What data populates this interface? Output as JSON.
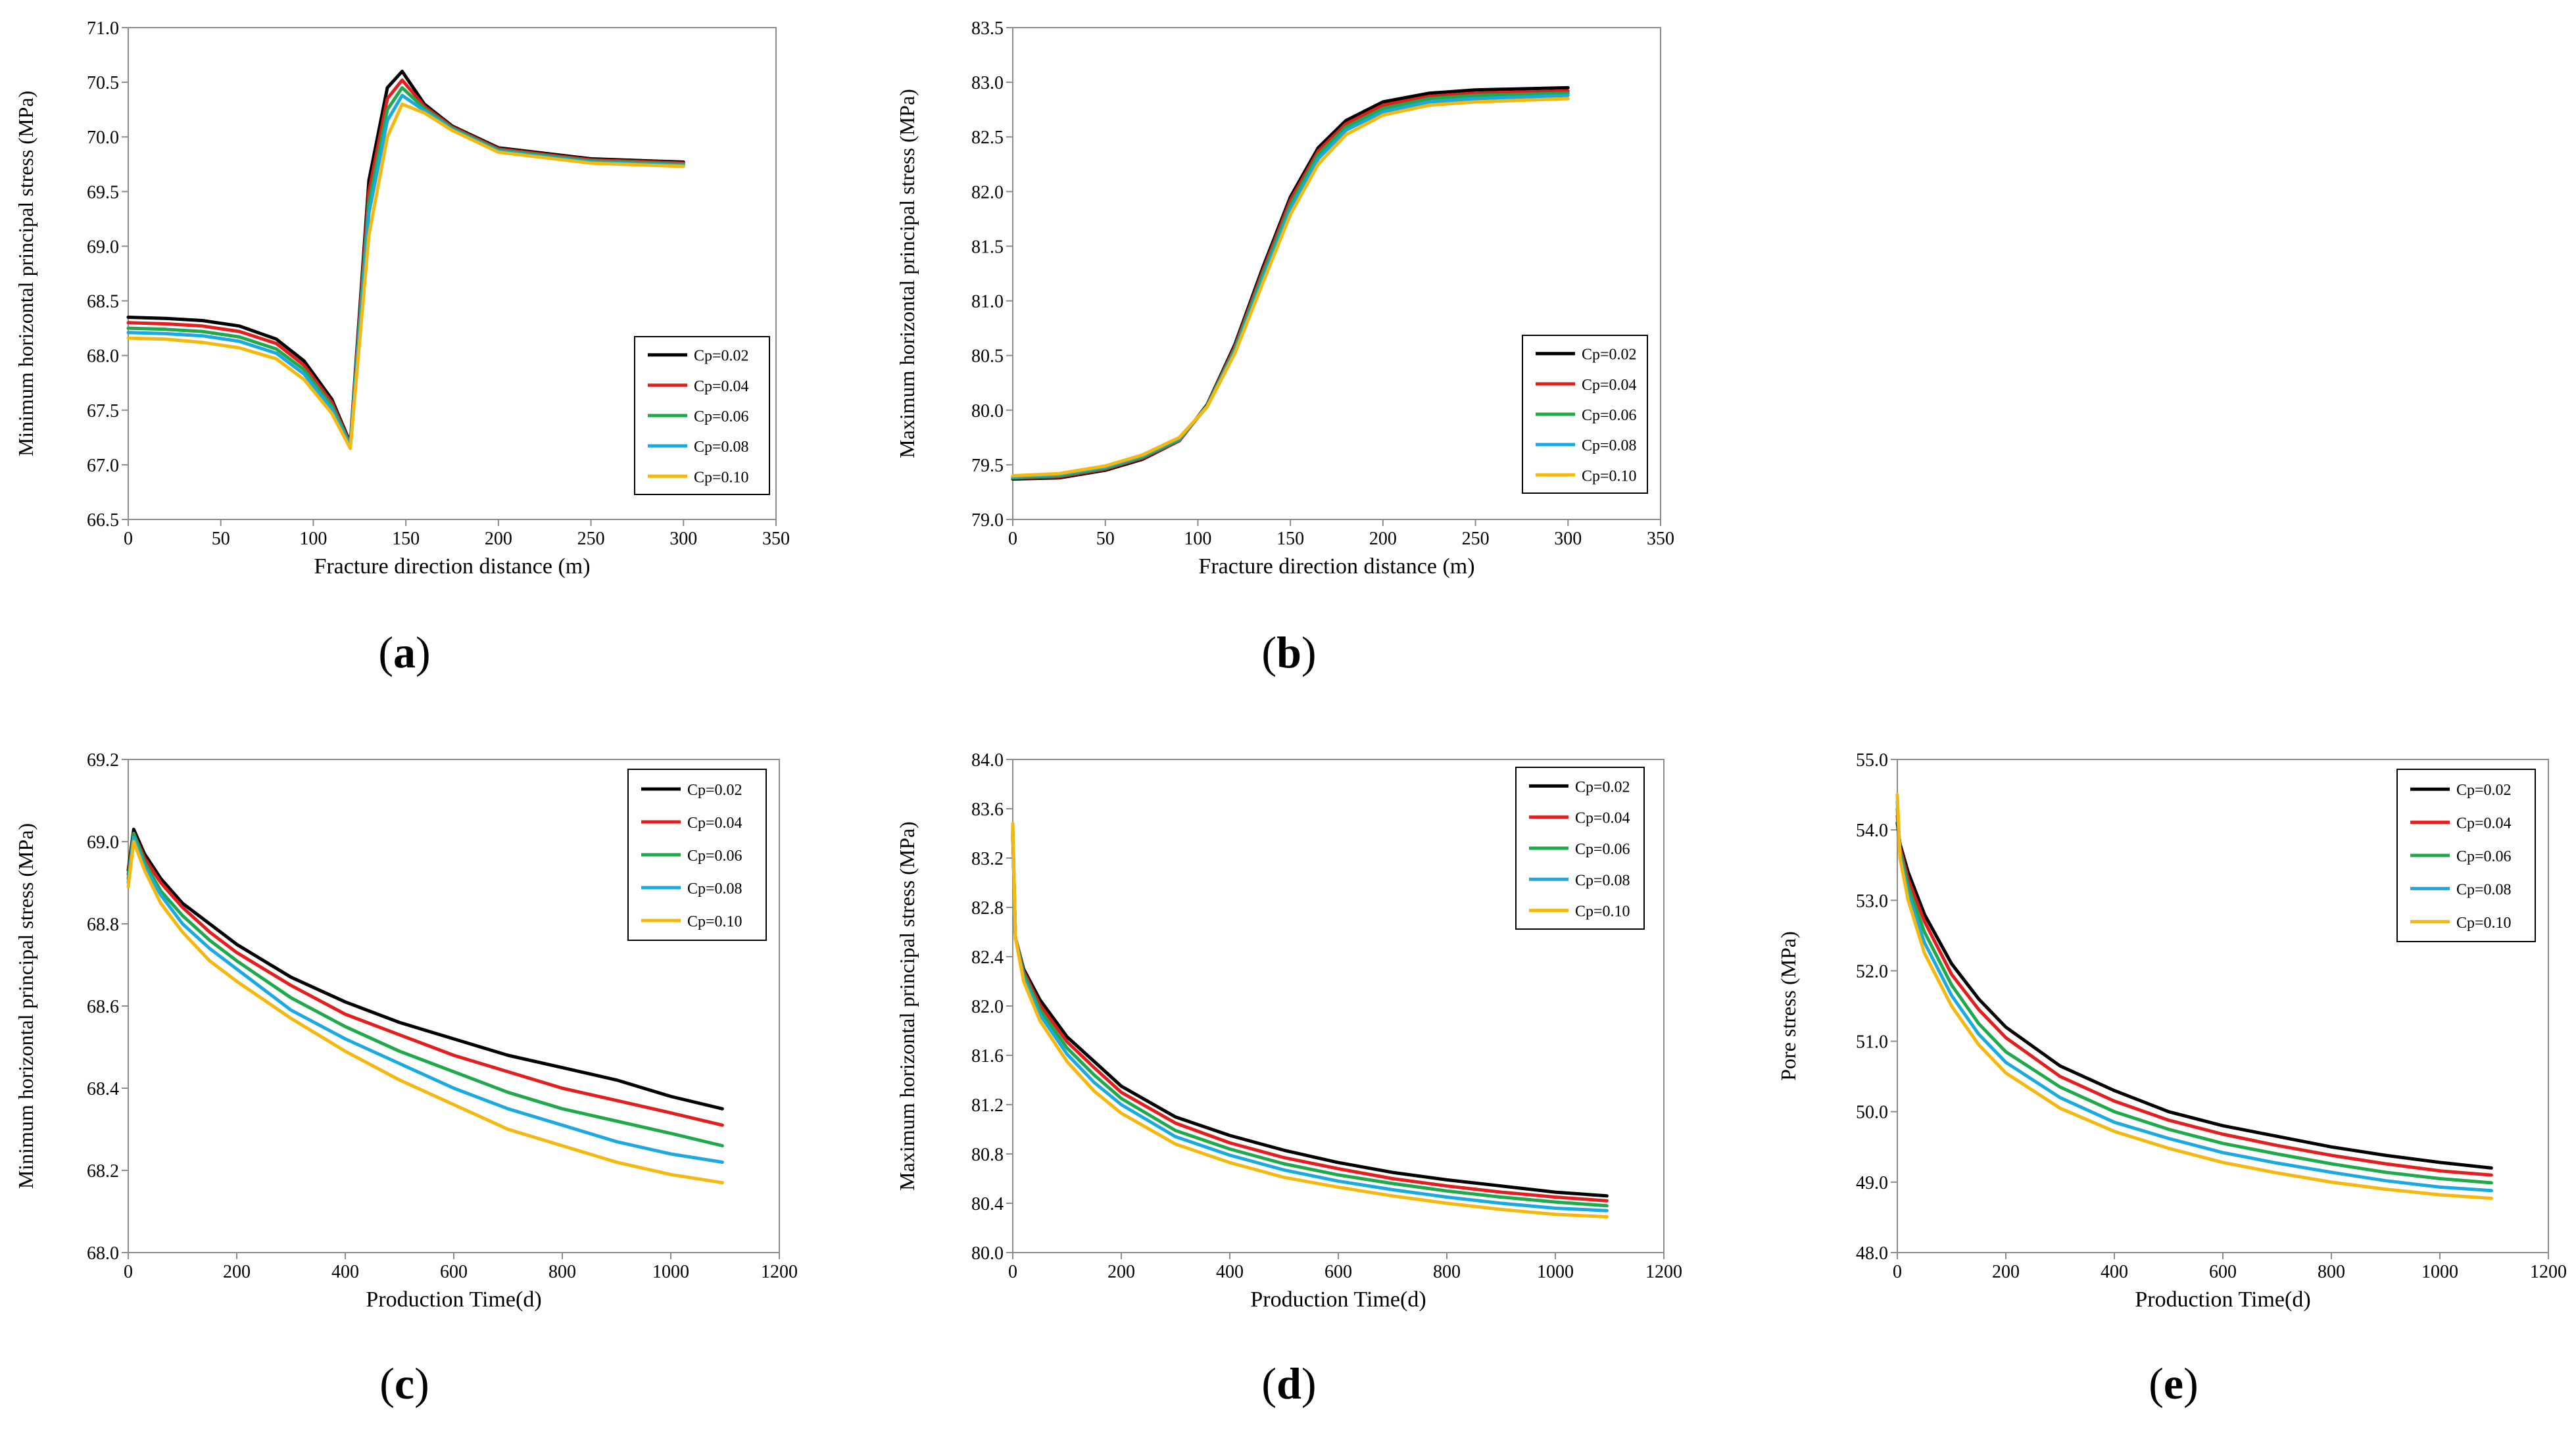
{
  "colors": {
    "Cp=0.02": "#000000",
    "Cp=0.04": "#e41e1e",
    "Cp=0.06": "#1fa94a",
    "Cp=0.08": "#1aa9e0",
    "Cp=0.10": "#f5b80f"
  },
  "chart_data": [
    {
      "id": "a",
      "type": "line",
      "panel_label": "a",
      "xlabel": "Fracture direction distance (m)",
      "ylabel": "Minimum horizontal principal stress (MPa)",
      "xlim": [
        0,
        350
      ],
      "ylim": [
        66.5,
        71.0
      ],
      "xticks": [
        "0",
        "50",
        "100",
        "150",
        "200",
        "250",
        "300",
        "350"
      ],
      "yticks": [
        "66.5",
        "67.0",
        "67.5",
        "68.0",
        "68.5",
        "69.0",
        "69.5",
        "70.0",
        "70.5",
        "71.0"
      ],
      "legend": [
        "Cp=0.02",
        "Cp=0.04",
        "Cp=0.06",
        "Cp=0.08",
        "Cp=0.10"
      ],
      "x": [
        0,
        20,
        40,
        60,
        80,
        95,
        110,
        120,
        130,
        140,
        148,
        160,
        175,
        200,
        250,
        300
      ],
      "series": [
        {
          "name": "Cp=0.02",
          "values": [
            68.35,
            68.34,
            68.32,
            68.27,
            68.15,
            67.95,
            67.6,
            67.2,
            69.6,
            70.45,
            70.6,
            70.3,
            70.1,
            69.9,
            69.8,
            69.77
          ]
        },
        {
          "name": "Cp=0.04",
          "values": [
            68.3,
            68.29,
            68.27,
            68.22,
            68.11,
            67.91,
            67.57,
            67.19,
            69.5,
            70.35,
            70.52,
            70.28,
            70.09,
            69.89,
            69.79,
            69.76
          ]
        },
        {
          "name": "Cp=0.06",
          "values": [
            68.25,
            68.24,
            68.22,
            68.17,
            68.06,
            67.87,
            67.54,
            67.18,
            69.4,
            70.25,
            70.45,
            70.26,
            70.08,
            69.88,
            69.78,
            69.75
          ]
        },
        {
          "name": "Cp=0.08",
          "values": [
            68.21,
            68.2,
            68.18,
            68.13,
            68.02,
            67.83,
            67.51,
            67.17,
            69.3,
            70.15,
            70.38,
            70.24,
            70.07,
            69.87,
            69.77,
            69.74
          ]
        },
        {
          "name": "Cp=0.10",
          "values": [
            68.16,
            68.15,
            68.12,
            68.07,
            67.97,
            67.78,
            67.47,
            67.15,
            69.1,
            70.0,
            70.3,
            70.22,
            70.06,
            69.86,
            69.76,
            69.73
          ]
        }
      ]
    },
    {
      "id": "b",
      "type": "line",
      "panel_label": "b",
      "xlabel": "Fracture direction distance (m)",
      "ylabel": "Maximum horizontal principal stress (MPa)",
      "xlim": [
        0,
        350
      ],
      "ylim": [
        79.0,
        83.5
      ],
      "xticks": [
        "0",
        "50",
        "100",
        "150",
        "200",
        "250",
        "300",
        "350"
      ],
      "yticks": [
        "79.0",
        "79.5",
        "80.0",
        "80.5",
        "81.0",
        "81.5",
        "82.0",
        "82.5",
        "83.0",
        "83.5"
      ],
      "legend": [
        "Cp=0.02",
        "Cp=0.04",
        "Cp=0.06",
        "Cp=0.08",
        "Cp=0.10"
      ],
      "x": [
        0,
        25,
        50,
        70,
        90,
        105,
        120,
        135,
        150,
        165,
        180,
        200,
        225,
        250,
        300
      ],
      "series": [
        {
          "name": "Cp=0.02",
          "values": [
            79.37,
            79.38,
            79.45,
            79.55,
            79.72,
            80.05,
            80.6,
            81.3,
            81.95,
            82.4,
            82.65,
            82.82,
            82.9,
            82.93,
            82.95
          ]
        },
        {
          "name": "Cp=0.04",
          "values": [
            79.38,
            79.39,
            79.46,
            79.56,
            79.72,
            80.04,
            80.58,
            81.27,
            81.92,
            82.37,
            82.62,
            82.79,
            82.87,
            82.9,
            82.92
          ]
        },
        {
          "name": "Cp=0.06",
          "values": [
            79.38,
            79.4,
            79.47,
            79.57,
            79.73,
            80.04,
            80.56,
            81.24,
            81.88,
            82.34,
            82.59,
            82.76,
            82.85,
            82.88,
            82.9
          ]
        },
        {
          "name": "Cp=0.08",
          "values": [
            79.39,
            79.41,
            79.48,
            79.58,
            79.74,
            80.03,
            80.54,
            81.2,
            81.84,
            82.3,
            82.56,
            82.73,
            82.82,
            82.85,
            82.88
          ]
        },
        {
          "name": "Cp=0.10",
          "values": [
            79.4,
            79.42,
            79.49,
            79.59,
            79.75,
            80.03,
            80.52,
            81.16,
            81.79,
            82.25,
            82.52,
            82.7,
            82.79,
            82.82,
            82.85
          ]
        }
      ]
    },
    {
      "id": "c",
      "type": "line",
      "panel_label": "c",
      "xlabel": "Production Time(d)",
      "ylabel": "Minimum horizontal principal stress (MPa)",
      "xlim": [
        0,
        1200
      ],
      "ylim": [
        68.0,
        69.2
      ],
      "xticks": [
        "0",
        "200",
        "400",
        "600",
        "800",
        "1000",
        "1200"
      ],
      "yticks": [
        "68.0",
        "68.2",
        "68.4",
        "68.6",
        "68.8",
        "69.0",
        "69.2"
      ],
      "legend": [
        "Cp=0.02",
        "Cp=0.04",
        "Cp=0.06",
        "Cp=0.08",
        "Cp=0.10"
      ],
      "x": [
        0,
        10,
        30,
        60,
        100,
        150,
        200,
        300,
        400,
        500,
        600,
        700,
        800,
        900,
        1000,
        1095
      ],
      "series": [
        {
          "name": "Cp=0.02",
          "values": [
            68.93,
            69.03,
            68.97,
            68.91,
            68.85,
            68.8,
            68.75,
            68.67,
            68.61,
            68.56,
            68.52,
            68.48,
            68.45,
            68.42,
            68.38,
            68.35
          ]
        },
        {
          "name": "Cp=0.04",
          "values": [
            68.92,
            69.02,
            68.96,
            68.9,
            68.84,
            68.78,
            68.73,
            68.65,
            68.58,
            68.53,
            68.48,
            68.44,
            68.4,
            68.37,
            68.34,
            68.31
          ]
        },
        {
          "name": "Cp=0.06",
          "values": [
            68.91,
            69.02,
            68.95,
            68.88,
            68.82,
            68.76,
            68.71,
            68.62,
            68.55,
            68.49,
            68.44,
            68.39,
            68.35,
            68.32,
            68.29,
            68.26
          ]
        },
        {
          "name": "Cp=0.08",
          "values": [
            68.9,
            69.01,
            68.94,
            68.87,
            68.8,
            68.74,
            68.69,
            68.59,
            68.52,
            68.46,
            68.4,
            68.35,
            68.31,
            68.27,
            68.24,
            68.22
          ]
        },
        {
          "name": "Cp=0.10",
          "values": [
            68.89,
            69.0,
            68.93,
            68.85,
            68.78,
            68.71,
            68.66,
            68.57,
            68.49,
            68.42,
            68.36,
            68.3,
            68.26,
            68.22,
            68.19,
            68.17
          ]
        }
      ]
    },
    {
      "id": "d",
      "type": "line",
      "panel_label": "d",
      "xlabel": "Production Time(d)",
      "ylabel": "Maximum horizontal principal stress (MPa)",
      "xlim": [
        0,
        1200
      ],
      "ylim": [
        80.0,
        84.0
      ],
      "xticks": [
        "0",
        "200",
        "400",
        "600",
        "800",
        "1000",
        "1200"
      ],
      "yticks": [
        "80.0",
        "80.4",
        "80.8",
        "81.2",
        "81.6",
        "82.0",
        "82.4",
        "82.8",
        "83.2",
        "83.6",
        "84.0"
      ],
      "legend": [
        "Cp=0.02",
        "Cp=0.04",
        "Cp=0.06",
        "Cp=0.08",
        "Cp=0.10"
      ],
      "x": [
        0,
        5,
        20,
        50,
        100,
        150,
        200,
        300,
        400,
        500,
        600,
        700,
        800,
        900,
        1000,
        1095
      ],
      "series": [
        {
          "name": "Cp=0.02",
          "values": [
            83.4,
            82.55,
            82.3,
            82.05,
            81.75,
            81.55,
            81.35,
            81.1,
            80.95,
            80.83,
            80.73,
            80.65,
            80.59,
            80.54,
            80.49,
            80.46
          ]
        },
        {
          "name": "Cp=0.04",
          "values": [
            83.42,
            82.55,
            82.28,
            82.01,
            81.71,
            81.5,
            81.3,
            81.05,
            80.89,
            80.77,
            80.68,
            80.6,
            80.54,
            80.49,
            80.45,
            80.42
          ]
        },
        {
          "name": "Cp=0.06",
          "values": [
            83.44,
            82.55,
            82.26,
            81.97,
            81.66,
            81.44,
            81.25,
            80.99,
            80.84,
            80.72,
            80.63,
            80.56,
            80.5,
            80.45,
            80.41,
            80.38
          ]
        },
        {
          "name": "Cp=0.08",
          "values": [
            83.46,
            82.55,
            82.23,
            81.93,
            81.61,
            81.38,
            81.2,
            80.94,
            80.79,
            80.67,
            80.58,
            80.51,
            80.45,
            80.4,
            80.36,
            80.34
          ]
        },
        {
          "name": "Cp=0.10",
          "values": [
            83.48,
            82.55,
            82.2,
            81.88,
            81.55,
            81.31,
            81.13,
            80.88,
            80.73,
            80.61,
            80.53,
            80.46,
            80.4,
            80.35,
            80.31,
            80.29
          ]
        }
      ]
    },
    {
      "id": "e",
      "type": "line",
      "panel_label": "e",
      "xlabel": "Production Time(d)",
      "ylabel": "Pore stress (MPa)",
      "xlim": [
        0,
        1200
      ],
      "ylim": [
        48.0,
        55.0
      ],
      "xticks": [
        "0",
        "200",
        "400",
        "600",
        "800",
        "1000",
        "1200"
      ],
      "yticks": [
        "48.0",
        "49.0",
        "50.0",
        "51.0",
        "52.0",
        "53.0",
        "54.0",
        "55.0"
      ],
      "legend": [
        "Cp=0.02",
        "Cp=0.04",
        "Cp=0.06",
        "Cp=0.08",
        "Cp=0.10"
      ],
      "x": [
        0,
        5,
        20,
        50,
        100,
        150,
        200,
        300,
        400,
        500,
        600,
        700,
        800,
        900,
        1000,
        1095
      ],
      "series": [
        {
          "name": "Cp=0.02",
          "values": [
            54.1,
            53.8,
            53.4,
            52.8,
            52.1,
            51.6,
            51.2,
            50.65,
            50.3,
            50.0,
            49.8,
            49.65,
            49.5,
            49.38,
            49.28,
            49.2
          ]
        },
        {
          "name": "Cp=0.04",
          "values": [
            54.2,
            53.75,
            53.3,
            52.7,
            51.95,
            51.45,
            51.05,
            50.5,
            50.15,
            49.88,
            49.68,
            49.52,
            49.38,
            49.26,
            49.16,
            49.1
          ]
        },
        {
          "name": "Cp=0.06",
          "values": [
            54.3,
            53.7,
            53.2,
            52.55,
            51.8,
            51.25,
            50.85,
            50.35,
            50.0,
            49.75,
            49.55,
            49.4,
            49.26,
            49.14,
            49.05,
            48.99
          ]
        },
        {
          "name": "Cp=0.08",
          "values": [
            54.4,
            53.65,
            53.1,
            52.4,
            51.65,
            51.1,
            50.7,
            50.2,
            49.85,
            49.62,
            49.42,
            49.27,
            49.14,
            49.02,
            48.93,
            48.88
          ]
        },
        {
          "name": "Cp=0.10",
          "values": [
            54.5,
            53.6,
            53.0,
            52.25,
            51.5,
            50.95,
            50.55,
            50.05,
            49.72,
            49.48,
            49.28,
            49.13,
            49.0,
            48.9,
            48.82,
            48.77
          ]
        }
      ]
    }
  ]
}
